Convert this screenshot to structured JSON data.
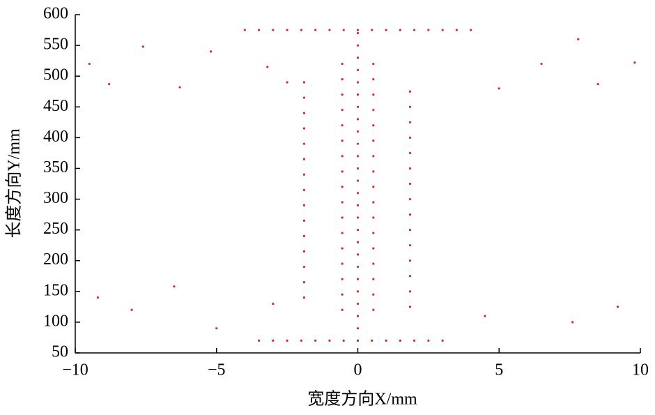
{
  "chart_data": {
    "type": "scatter",
    "x_label": "宽度方向X/mm",
    "y_label": "长度方向Y/mm",
    "xlim": [
      -10,
      10
    ],
    "ylim": [
      50,
      600
    ],
    "xticks": [
      {
        "value": -10,
        "label": "−10"
      },
      {
        "value": -5,
        "label": "−5"
      },
      0,
      5,
      10
    ],
    "yticks": [
      50,
      100,
      150,
      200,
      250,
      300,
      350,
      400,
      450,
      500,
      550,
      600
    ],
    "grid": false,
    "series": [
      {
        "color": "#d42a26",
        "x": [
          0,
          0,
          0,
          0,
          0,
          0,
          0,
          0,
          0,
          0,
          0,
          0,
          0,
          0,
          0,
          0,
          0,
          0,
          0,
          0,
          0,
          0,
          0,
          0,
          0,
          0,
          -0.55,
          -0.55,
          -0.55,
          -0.55,
          -0.55,
          -0.55,
          -0.55,
          -0.55,
          -0.55,
          -0.55,
          -0.55,
          -0.55,
          -0.55,
          -0.55,
          -0.55,
          -0.55,
          -0.55,
          0.55,
          0.55,
          0.55,
          0.55,
          0.55,
          0.55,
          0.55,
          0.55,
          0.55,
          0.55,
          0.55,
          0.55,
          0.55,
          0.55,
          0.55,
          0.55,
          0.55,
          -1.9,
          -1.9,
          -1.9,
          -1.9,
          -1.9,
          -1.9,
          -1.9,
          -1.9,
          -1.9,
          -1.9,
          -1.9,
          -1.9,
          -1.9,
          -1.9,
          -1.9,
          1.85,
          1.85,
          1.85,
          1.85,
          1.85,
          1.85,
          1.85,
          1.85,
          1.85,
          1.85,
          1.85,
          1.85,
          1.85,
          1.85,
          1.85,
          -4,
          -3.5,
          -3,
          -2.5,
          -2,
          -1.5,
          -1,
          -0.5,
          0,
          0.5,
          1,
          1.5,
          2,
          2.5,
          3,
          3.5,
          4,
          -3.5,
          -3,
          -2.5,
          -2,
          -1.5,
          -1,
          -0.5,
          0,
          0.5,
          1,
          1.5,
          2,
          2.5,
          3,
          -9.5,
          -8.8,
          -7.6,
          -6.3,
          -5.2,
          -3.2,
          -2.5,
          5,
          6.5,
          7.8,
          8.5,
          9.8,
          -9.2,
          -8,
          -6.5,
          -5,
          -3,
          4.5,
          7.6,
          9.2
        ],
        "y": [
          70,
          90,
          110,
          130,
          150,
          170,
          190,
          210,
          230,
          250,
          270,
          290,
          310,
          330,
          350,
          370,
          390,
          410,
          430,
          450,
          470,
          490,
          510,
          530,
          550,
          570,
          120,
          145,
          170,
          195,
          220,
          245,
          270,
          295,
          320,
          345,
          370,
          395,
          420,
          445,
          470,
          495,
          520,
          120,
          145,
          170,
          195,
          220,
          245,
          270,
          295,
          320,
          345,
          370,
          395,
          420,
          445,
          470,
          495,
          520,
          140,
          165,
          190,
          215,
          240,
          265,
          290,
          315,
          340,
          365,
          390,
          415,
          440,
          465,
          490,
          125,
          150,
          175,
          200,
          225,
          250,
          275,
          300,
          325,
          350,
          375,
          400,
          425,
          450,
          475,
          575,
          575,
          575,
          575,
          575,
          575,
          575,
          575,
          575,
          575,
          575,
          575,
          575,
          575,
          575,
          575,
          575,
          70,
          70,
          70,
          70,
          70,
          70,
          70,
          70,
          70,
          70,
          70,
          70,
          70,
          70,
          520,
          487,
          548,
          482,
          540,
          515,
          490,
          480,
          520,
          560,
          487,
          522,
          140,
          120,
          158,
          90,
          130,
          110,
          100,
          125
        ]
      }
    ]
  }
}
